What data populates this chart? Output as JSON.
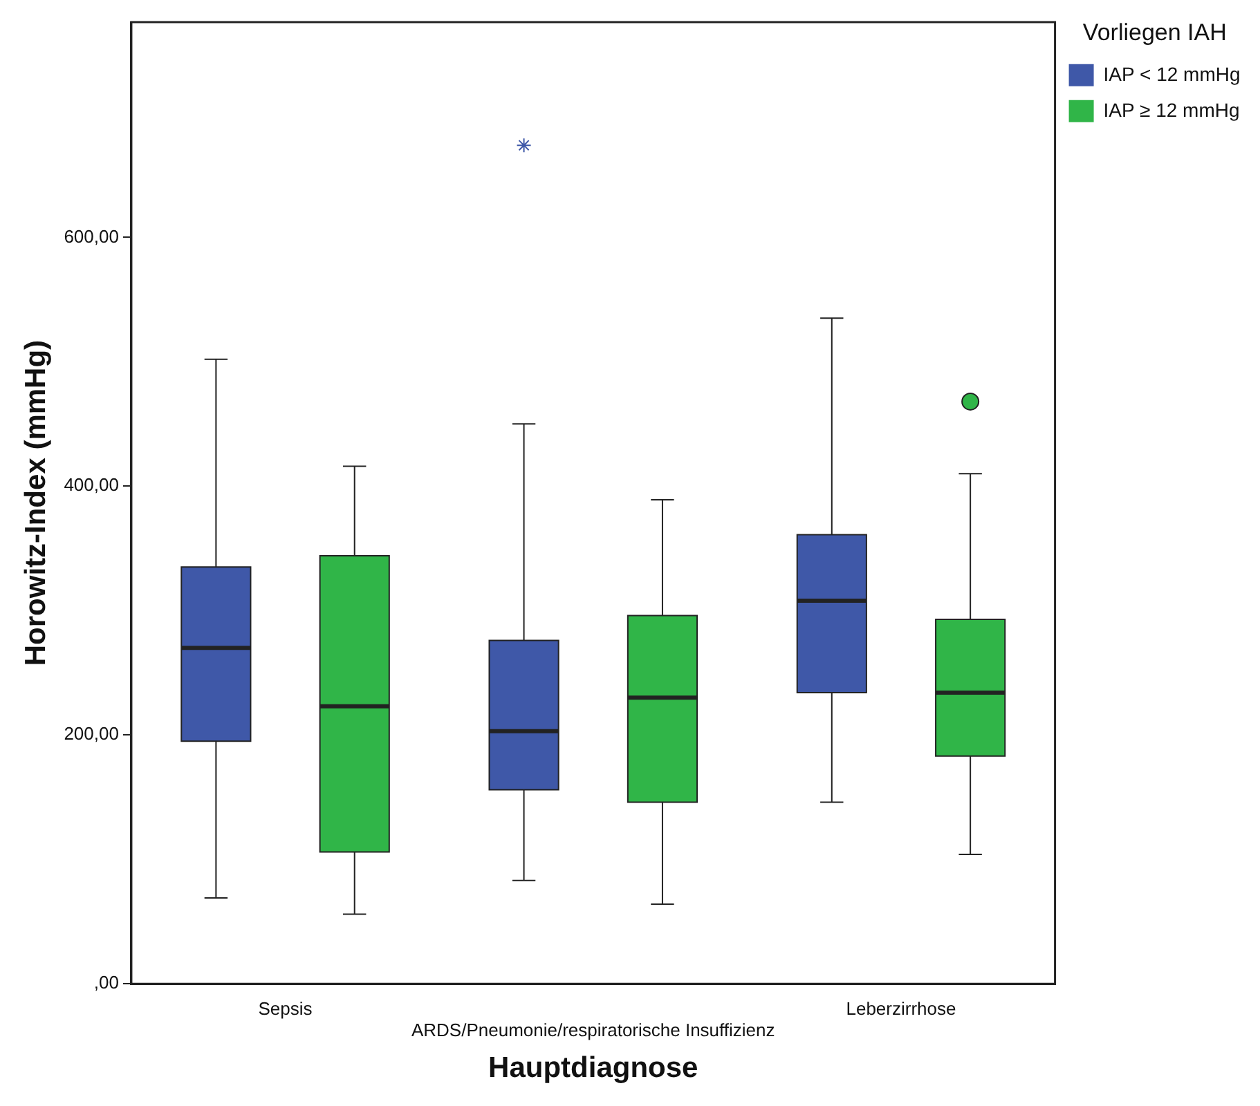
{
  "chart_data": {
    "type": "box",
    "xlabel": "Hauptdiagnose",
    "ylabel": "Horowitz-Index (mmHg)",
    "legend_title": "Vorliegen IAH",
    "categories": [
      "Sepsis",
      "ARDS/Pneumonie/respiratorische Insuffizienz",
      "Leberzirrhose"
    ],
    "ylim": [
      0,
      773
    ],
    "yticks": [
      {
        "value": 0,
        "label": ",00"
      },
      {
        "value": 200,
        "label": "200,00"
      },
      {
        "value": 400,
        "label": "400,00"
      },
      {
        "value": 600,
        "label": "600,00"
      }
    ],
    "grid": false,
    "legend": "top right",
    "series": [
      {
        "name": "IAP < 12 mmHg",
        "color": "#3f58a8",
        "marker": "star",
        "boxes": [
          {
            "low": 69,
            "q1": 195,
            "median": 270,
            "q3": 335,
            "high": 502
          },
          {
            "low": 83,
            "q1": 156,
            "median": 203,
            "q3": 276,
            "high": 450,
            "outliers": [
              674
            ]
          },
          {
            "low": 146,
            "q1": 234,
            "median": 308,
            "q3": 361,
            "high": 535
          }
        ]
      },
      {
        "name": "IAP ≥ 12 mmHg",
        "color": "#30b548",
        "marker": "circle",
        "boxes": [
          {
            "low": 56,
            "q1": 106,
            "median": 223,
            "q3": 344,
            "high": 416
          },
          {
            "low": 64,
            "q1": 146,
            "median": 230,
            "q3": 296,
            "high": 389
          },
          {
            "low": 104,
            "q1": 183,
            "median": 234,
            "q3": 293,
            "high": 410,
            "outliers": [
              468
            ]
          }
        ]
      }
    ]
  }
}
